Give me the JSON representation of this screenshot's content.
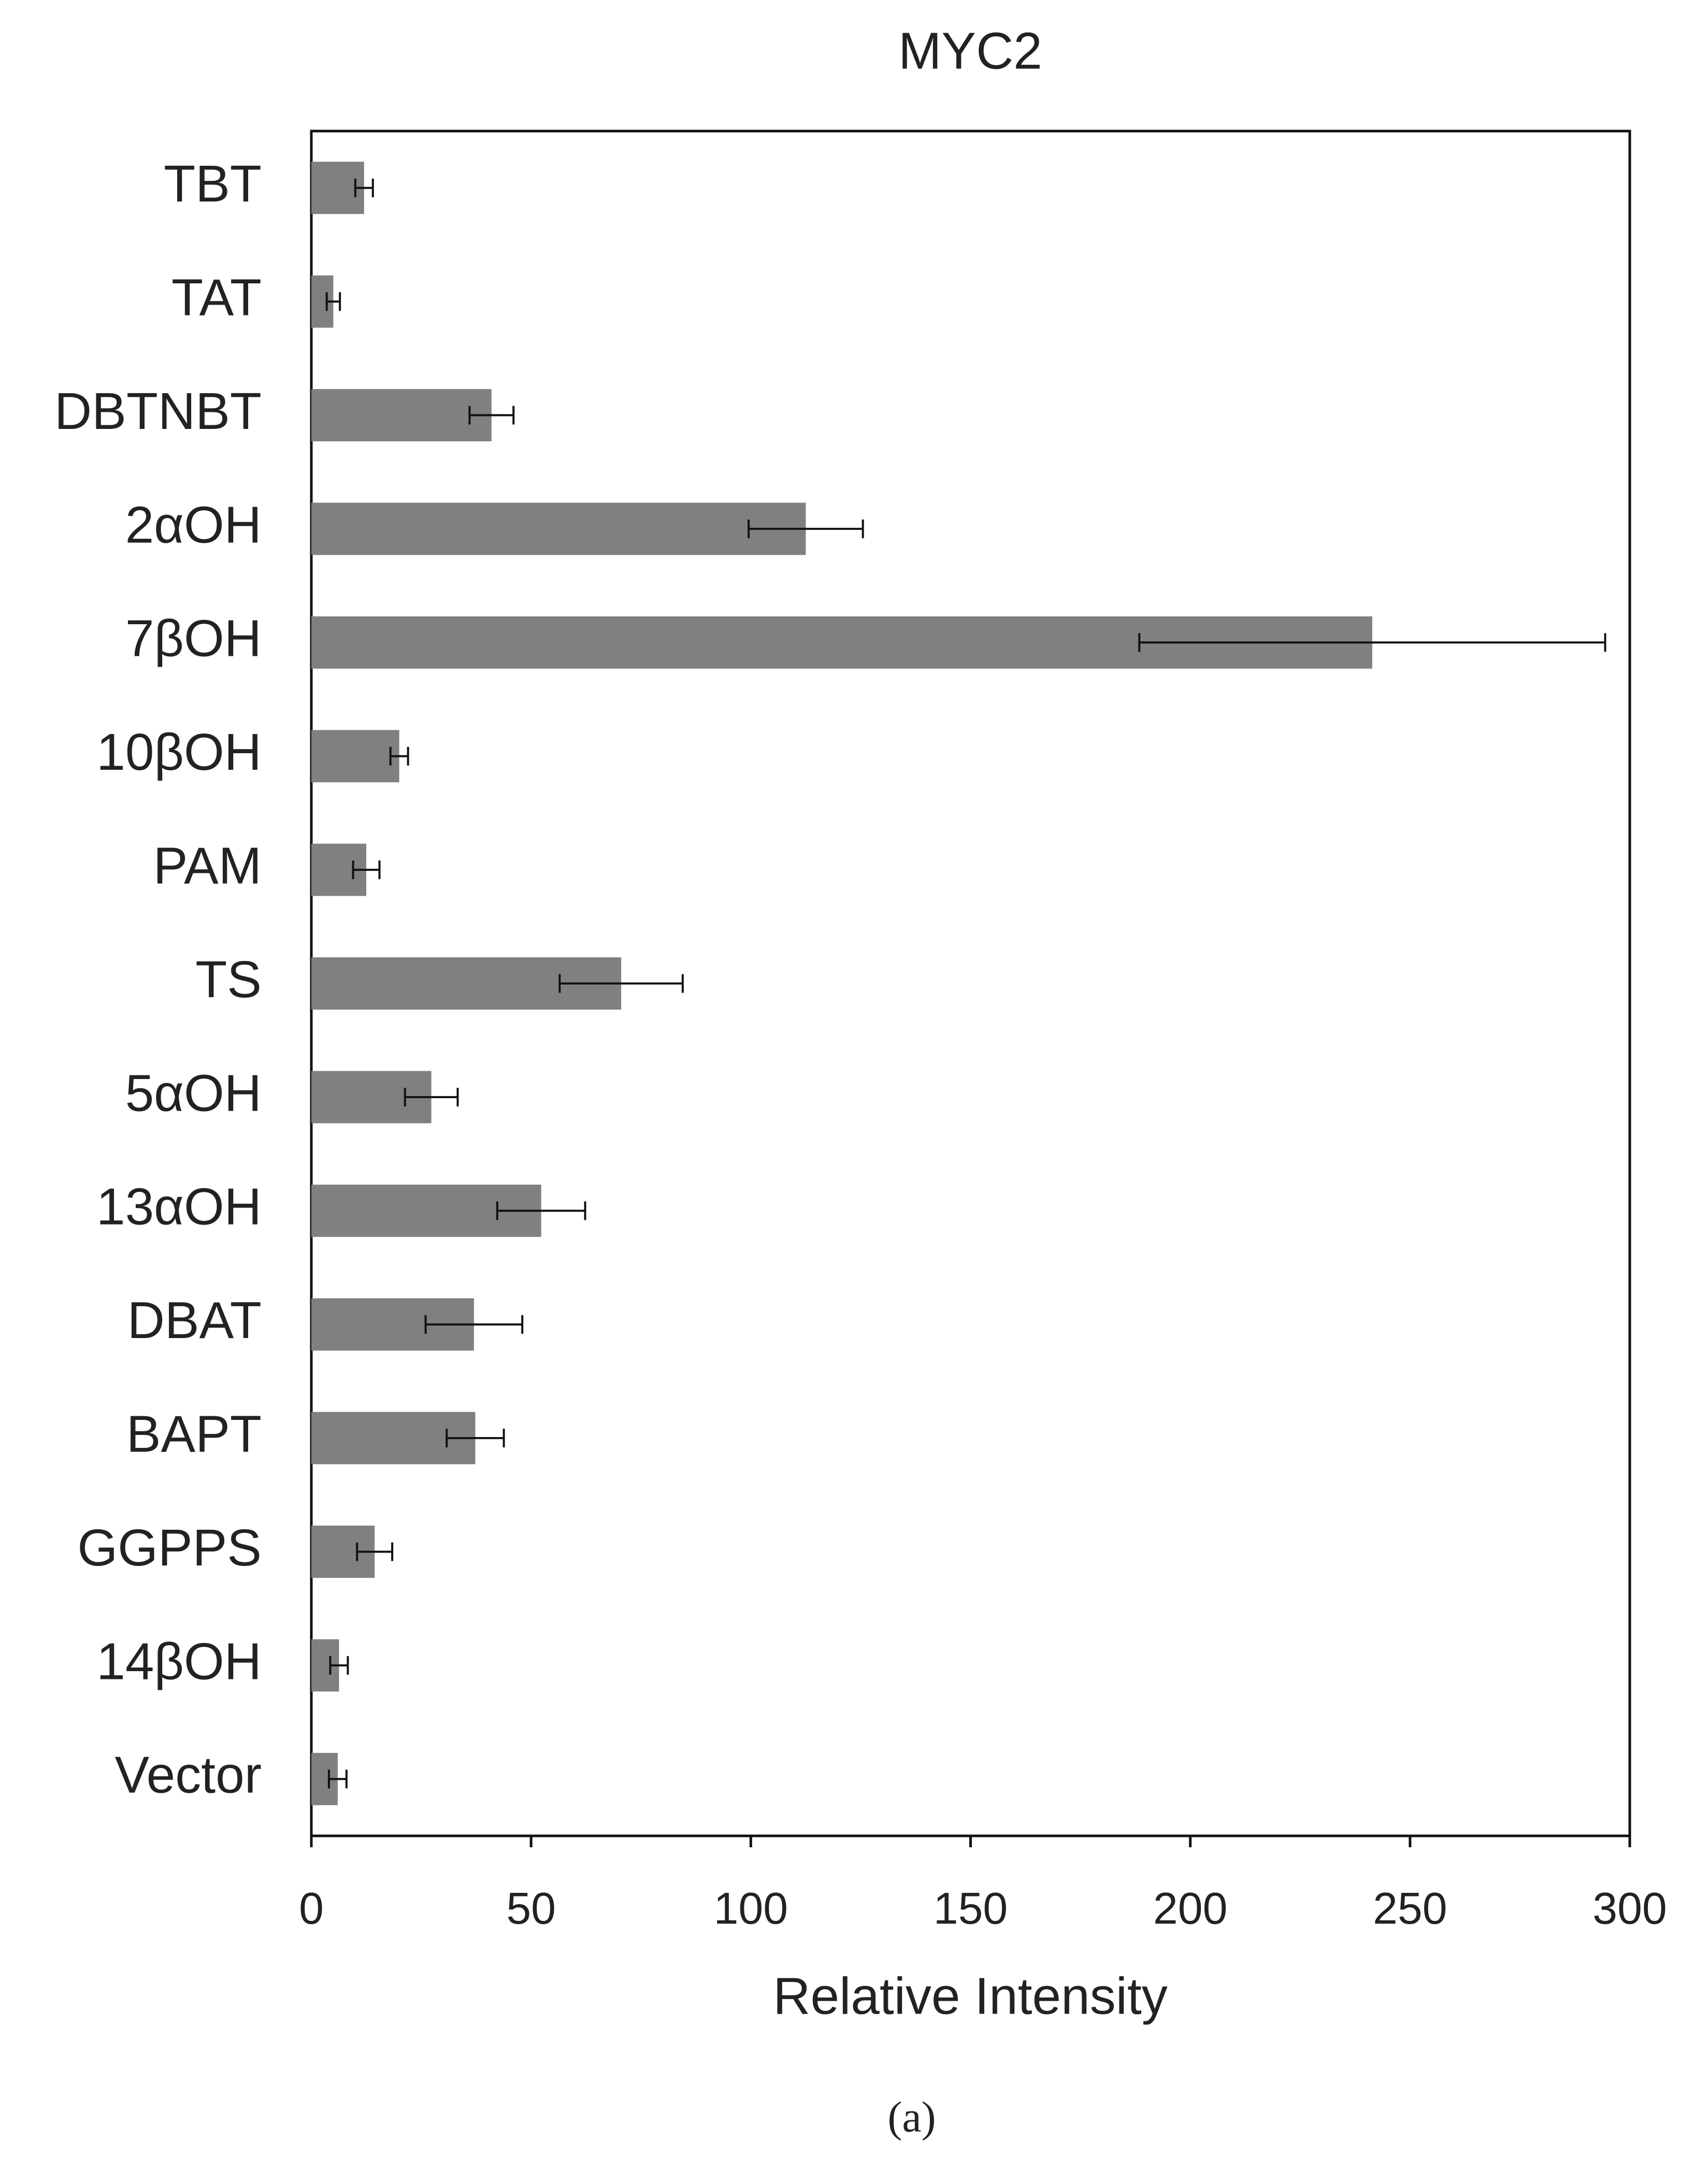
{
  "chart_data": {
    "type": "hbar",
    "title": "MYC2",
    "x_label": "Relative Intensity",
    "caption": "(a)",
    "categories": [
      "TBT",
      "TAT",
      "DBTNBT",
      "2αOH",
      "7βOH",
      "10βOH",
      "PAM",
      "TS",
      "5αOH",
      "13αOH",
      "DBAT",
      "BAPT",
      "GGPPS",
      "14βOH",
      "Vector"
    ],
    "values": [
      12,
      5,
      41,
      112.5,
      241.4,
      20,
      12.5,
      70.5,
      27.3,
      52.3,
      37,
      37.3,
      14.4,
      6.3,
      6
    ],
    "errors": [
      2,
      1.5,
      5,
      13,
      53,
      2,
      3,
      14,
      6,
      10,
      11,
      6.5,
      4,
      2,
      2
    ],
    "color": "#808080",
    "xlim": [
      0,
      300
    ],
    "xticks": [
      0,
      50,
      100,
      150,
      200,
      250,
      300
    ],
    "grid": false
  }
}
